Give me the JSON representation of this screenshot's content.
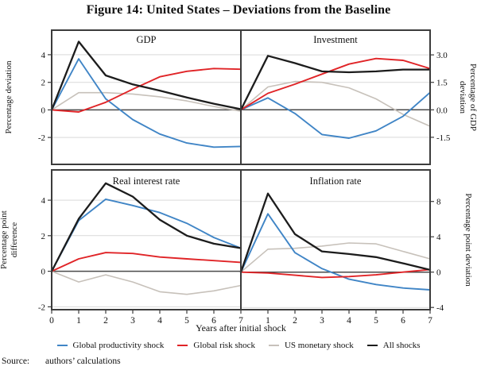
{
  "title": "Figure 14: United States – Deviations from the Baseline",
  "source": {
    "label": "Source:",
    "text": "authors’ calculations"
  },
  "colors": {
    "productivity": "#4085c6",
    "risk": "#e02427",
    "monetary": "#c7c1ba",
    "all": "#1c1c1c",
    "gridline": "#d9d9d9",
    "zeroline": "#4a4a4a",
    "border": "#3c3c3c",
    "text": "#111111"
  },
  "legend": [
    {
      "key": "productivity",
      "label": "Global productivity shock"
    },
    {
      "key": "risk",
      "label": "Global risk shock"
    },
    {
      "key": "monetary",
      "label": "US monetary shock"
    },
    {
      "key": "all",
      "label": "All shocks"
    }
  ],
  "chart_data": {
    "type": "line",
    "xlabel": "Years after initial shock",
    "x": [
      0,
      1,
      2,
      3,
      4,
      5,
      6,
      7
    ],
    "panels": [
      {
        "id": "gdp",
        "title": "GDP",
        "row": 0,
        "col": 0,
        "ylabel_lines": [
          "Percentage deviation"
        ],
        "ylim": [
          -3.95,
          5.78
        ],
        "yticks": {
          "values": [
            4,
            2,
            0,
            -2
          ],
          "labels": [
            "4",
            "2",
            "0",
            "-2"
          ]
        },
        "series": [
          {
            "key": "monetary",
            "name": "US monetary shock",
            "values": [
              0,
              1.25,
              1.25,
              1.15,
              0.95,
              0.65,
              0.25,
              -0.1
            ]
          },
          {
            "key": "productivity",
            "name": "Global productivity shock",
            "values": [
              0,
              3.7,
              0.8,
              -0.7,
              -1.75,
              -2.4,
              -2.7,
              -2.65
            ]
          },
          {
            "key": "risk",
            "name": "Global risk shock",
            "values": [
              0,
              -0.15,
              0.55,
              1.5,
              2.4,
              2.8,
              3.0,
              2.95
            ]
          },
          {
            "key": "all",
            "name": "All shocks",
            "values": [
              0,
              4.95,
              2.5,
              1.85,
              1.4,
              0.9,
              0.45,
              0.05
            ]
          }
        ]
      },
      {
        "id": "investment",
        "title": "Investment",
        "row": 0,
        "col": 1,
        "ylabel_lines": [
          "Percentage of GDP",
          "deviation"
        ],
        "ylim": [
          -2.98,
          4.35
        ],
        "yticks": {
          "values": [
            3.0,
            1.5,
            0.0,
            -1.5
          ],
          "labels": [
            "3.0",
            "1.5",
            "0.0",
            "-1.5"
          ]
        },
        "series": [
          {
            "key": "monetary",
            "name": "US monetary shock",
            "values": [
              0,
              1.25,
              1.55,
              1.5,
              1.2,
              0.6,
              -0.25,
              -0.9
            ]
          },
          {
            "key": "productivity",
            "name": "Global productivity shock",
            "values": [
              0,
              0.65,
              -0.2,
              -1.35,
              -1.55,
              -1.15,
              -0.35,
              0.95
            ]
          },
          {
            "key": "risk",
            "name": "Global risk shock",
            "values": [
              0,
              0.9,
              1.4,
              1.95,
              2.5,
              2.8,
              2.7,
              2.25
            ]
          },
          {
            "key": "all",
            "name": "All shocks",
            "values": [
              0,
              2.95,
              2.55,
              2.1,
              2.05,
              2.1,
              2.2,
              2.2
            ]
          }
        ]
      },
      {
        "id": "real-interest-rate",
        "title": "Real interest rate",
        "row": 1,
        "col": 0,
        "ylabel_lines": [
          "Percentage point",
          "difference"
        ],
        "ylim": [
          -2.16,
          5.7
        ],
        "yticks": {
          "values": [
            4,
            2,
            0,
            -2
          ],
          "labels": [
            "4",
            "2",
            "0",
            "-2"
          ]
        },
        "xticks": {
          "values": [
            0,
            1,
            2,
            3,
            4,
            5,
            6,
            7
          ],
          "labels": [
            "0",
            "1",
            "2",
            "3",
            "4",
            "5",
            "6",
            "7"
          ]
        },
        "series": [
          {
            "key": "monetary",
            "name": "US monetary shock",
            "values": [
              0,
              -0.6,
              -0.2,
              -0.6,
              -1.15,
              -1.3,
              -1.1,
              -0.8
            ]
          },
          {
            "key": "productivity",
            "name": "Global productivity shock",
            "values": [
              0,
              2.85,
              4.05,
              3.7,
              3.3,
              2.7,
              1.9,
              1.3
            ]
          },
          {
            "key": "risk",
            "name": "Global risk shock",
            "values": [
              0,
              0.7,
              1.05,
              1.0,
              0.8,
              0.7,
              0.6,
              0.5
            ]
          },
          {
            "key": "all",
            "name": "All shocks",
            "values": [
              0,
              2.95,
              4.95,
              4.2,
              2.9,
              2.0,
              1.55,
              1.3
            ]
          }
        ]
      },
      {
        "id": "inflation-rate",
        "title": "Inflation rate",
        "row": 1,
        "col": 1,
        "ylabel_lines": [
          "Percentage point deviation"
        ],
        "ylim": [
          -4.25,
          11.57
        ],
        "yticks": {
          "values": [
            8,
            4,
            0,
            -4
          ],
          "labels": [
            "8",
            "4",
            "0",
            "-4"
          ]
        },
        "xticks": {
          "values": [
            1,
            2,
            3,
            4,
            5,
            6,
            7
          ],
          "labels": [
            "1",
            "2",
            "3",
            "4",
            "5",
            "6",
            "7"
          ]
        },
        "series": [
          {
            "key": "monetary",
            "name": "US monetary shock",
            "values": [
              0,
              2.6,
              2.7,
              2.95,
              3.3,
              3.2,
              2.35,
              1.5
            ]
          },
          {
            "key": "productivity",
            "name": "Global productivity shock",
            "values": [
              0,
              6.6,
              2.2,
              0.4,
              -0.8,
              -1.4,
              -1.8,
              -2.0
            ]
          },
          {
            "key": "risk",
            "name": "Global risk shock",
            "values": [
              0,
              -0.1,
              -0.35,
              -0.6,
              -0.5,
              -0.3,
              0.0,
              0.3
            ]
          },
          {
            "key": "all",
            "name": "All shocks",
            "values": [
              0,
              8.9,
              4.3,
              2.35,
              2.05,
              1.7,
              1.0,
              0.25
            ]
          }
        ]
      }
    ]
  }
}
